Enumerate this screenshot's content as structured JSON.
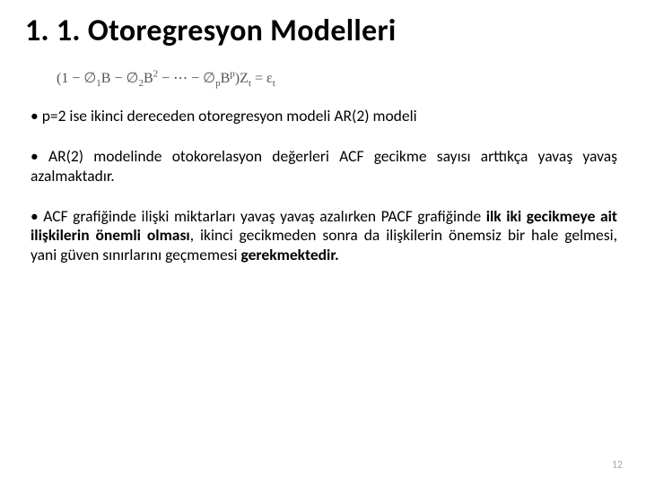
{
  "title": "1. 1. Otoregresyon Modelleri",
  "equation": {
    "open": "(1 − ∅",
    "sub1": "1",
    "mid1": "B − ∅",
    "sub2": "2",
    "mid2": "B",
    "sup2": "2",
    "dots": " − ⋯ − ∅",
    "subp": "p",
    "midp": "B",
    "supp": "p",
    "close": ")Z",
    "subt1": "t",
    "eq": " = ε",
    "subt2": "t"
  },
  "b1": "p=2 ise ikinci dereceden otoregresyon modeli AR(2) modeli",
  "b2": "AR(2) modelinde otokorelasyon değerleri ACF gecikme sayısı arttıkça yavaş yavaş azalmaktadır.",
  "b3_a": "ACF grafiğinde ilişki miktarları yavaş yavaş azalırken PACF grafiğinde ",
  "b3_b": "ilk iki gecikmeye ait ilişkilerin önemli olması",
  "b3_c": ", ikinci gecikmeden sonra da ilişkilerin önemsiz bir hale gelmesi, yani güven sınırlarını geçmemesi ",
  "b3_d": "gerekmektedir.",
  "page": "12",
  "colors": {
    "title": "#000000",
    "text": "#000000",
    "equation": "#545454",
    "page_num": "#9aaec2",
    "background": "#ffffff"
  },
  "fonts": {
    "title_size": 34,
    "body_size": 17.5,
    "equation_size": 16,
    "page_num_size": 12
  }
}
